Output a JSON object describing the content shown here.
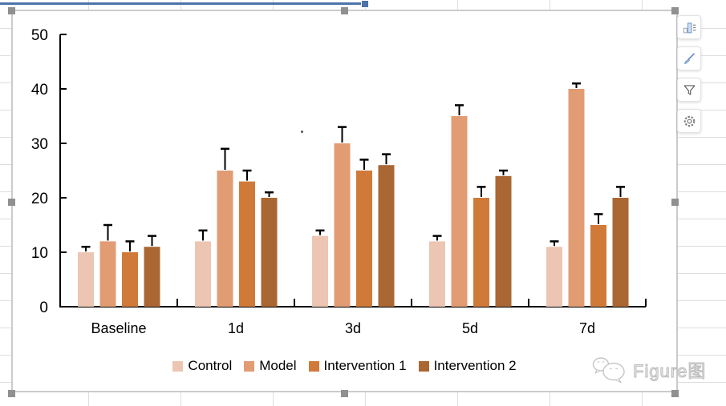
{
  "chart_data": {
    "type": "bar",
    "title": "",
    "xlabel": "",
    "ylabel": "",
    "categories": [
      "Baseline",
      "1d",
      "3d",
      "5d",
      "7d"
    ],
    "series": [
      {
        "name": "Control",
        "color": "#ecc6b2",
        "values": [
          10,
          12,
          13,
          12,
          11
        ],
        "errors": [
          1,
          2,
          1,
          1,
          1
        ]
      },
      {
        "name": "Model",
        "color": "#e29c73",
        "values": [
          12,
          25,
          30,
          35,
          40
        ],
        "errors": [
          3,
          4,
          3,
          2,
          1
        ]
      },
      {
        "name": "Intervention 1",
        "color": "#d07a3a",
        "values": [
          10,
          23,
          25,
          20,
          15
        ],
        "errors": [
          2,
          2,
          2,
          2,
          2
        ]
      },
      {
        "name": "Intervention 2",
        "color": "#aa6733",
        "values": [
          11,
          20,
          26,
          24,
          20
        ],
        "errors": [
          2,
          1,
          2,
          1,
          2
        ]
      }
    ],
    "ylim": [
      0,
      50
    ],
    "yticks": [
      0,
      10,
      20,
      30,
      40,
      50
    ],
    "grid": false,
    "legend_position": "bottom",
    "error_bars": "upper",
    "axis_color": "#000000"
  },
  "spreadsheet": {
    "selection_border_color": "#4d73a9",
    "gridline_color": "#dedede",
    "chart_selected": true,
    "handle_color": "#909090"
  },
  "toolbar": {
    "buttons": [
      {
        "name": "chart-elements",
        "icon": "column-chart-icon"
      },
      {
        "name": "chart-styles",
        "icon": "brush-icon"
      },
      {
        "name": "chart-filters",
        "icon": "funnel-icon"
      },
      {
        "name": "chart-settings",
        "icon": "gear-icon"
      }
    ]
  },
  "watermark": {
    "text": "Figure图",
    "icon": "wechat-icon",
    "color": "#b9b9b9"
  }
}
